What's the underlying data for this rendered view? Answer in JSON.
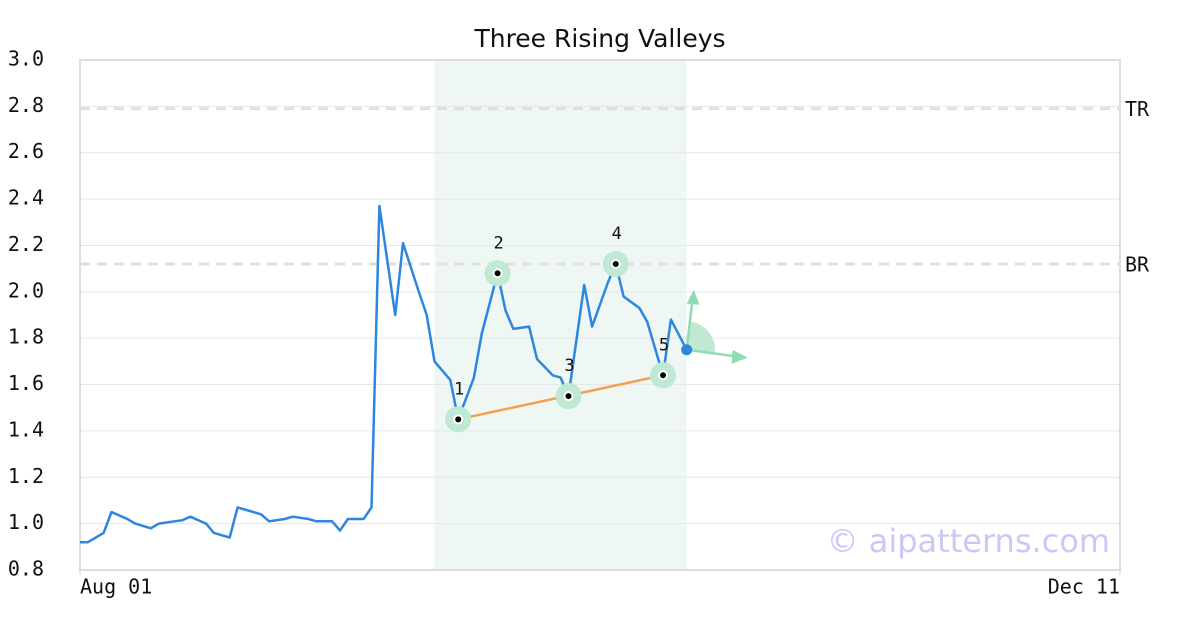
{
  "chart_data": {
    "type": "line",
    "title": "Three Rising Valleys",
    "x": [
      0,
      1,
      3,
      4,
      6,
      7,
      9,
      10,
      12,
      13,
      14,
      16,
      17,
      19,
      20,
      22,
      23,
      24,
      26,
      27,
      29,
      30,
      32,
      33,
      34,
      36,
      37,
      38,
      40,
      41,
      43,
      44,
      45,
      47,
      48,
      50,
      51,
      53,
      54,
      55,
      57,
      58,
      60,
      61,
      62,
      64,
      65,
      67,
      68,
      69,
      71,
      72,
      74,
      75,
      77
    ],
    "values": [
      0.92,
      0.92,
      0.96,
      1.05,
      1.02,
      1.0,
      0.98,
      1.0,
      1.01,
      1.015,
      1.03,
      1.0,
      0.96,
      0.94,
      1.07,
      1.05,
      1.04,
      1.01,
      1.02,
      1.03,
      1.02,
      1.01,
      1.01,
      0.97,
      1.02,
      1.02,
      1.07,
      2.37,
      1.9,
      2.21,
      2.0,
      1.9,
      1.7,
      1.62,
      1.45,
      1.63,
      1.82,
      2.08,
      1.92,
      1.84,
      1.85,
      1.71,
      1.64,
      1.63,
      1.55,
      2.03,
      1.85,
      2.04,
      2.12,
      1.98,
      1.93,
      1.87,
      1.64,
      1.88,
      1.75
    ],
    "color": "#2e86de",
    "xlim": [
      0,
      132
    ],
    "xticks": [
      {
        "value": 0,
        "label": "Aug 01"
      },
      {
        "value": 132,
        "label": "Dec 11"
      }
    ],
    "ylim": [
      0.8,
      3.0
    ],
    "yticks": [
      0.8,
      {
        "value": 1,
        "label": "1.0"
      },
      1.2,
      1.4,
      1.6,
      1.8,
      {
        "value": 2,
        "label": "2.0"
      },
      2.2,
      2.4,
      2.6,
      2.8,
      {
        "value": 3,
        "label": "3.0"
      }
    ],
    "grid": true,
    "levels": [
      {
        "label": "TR",
        "value": 2.79
      },
      {
        "label": "BR",
        "value": 2.12
      }
    ],
    "pattern": {
      "x_range": [
        45,
        77
      ],
      "points": [
        {
          "label": "1",
          "x": 48,
          "y": 1.45
        },
        {
          "label": "2",
          "x": 53,
          "y": 2.08
        },
        {
          "label": "3",
          "x": 62,
          "y": 1.55
        },
        {
          "label": "4",
          "x": 68,
          "y": 2.12
        },
        {
          "label": "5",
          "x": 74,
          "y": 1.64
        }
      ]
    },
    "watermark": "© aipatterns.com"
  }
}
